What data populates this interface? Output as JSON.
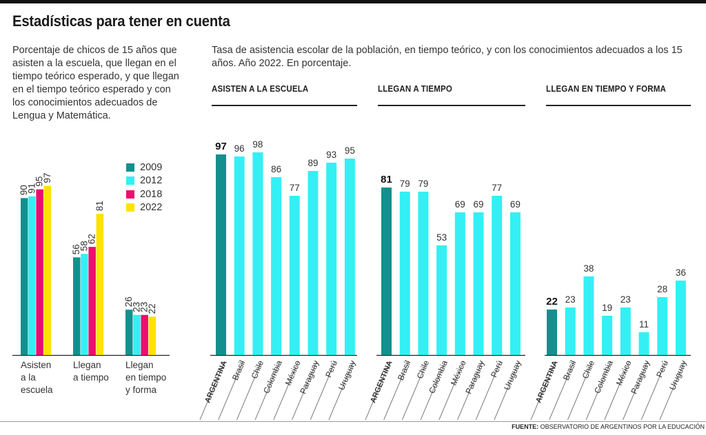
{
  "title": "Estadísticas para tener en cuenta",
  "left_description": "Porcentaje de chicos de 15 años que asisten a la escuela, que llegan en el tiempo teórico esperado, y que llegan en el tiempo teórico esperado y con los conocimientos adecuados de Lengua y Matemática.",
  "right_description": "Tasa de asistencia escolar de la población, en tiempo teórico, y con los conocimientos adecuados a los 15 años. Año 2022. En porcentaje.",
  "colors": {
    "y2009": "#13908e",
    "y2012": "#33f0f5",
    "y2018": "#ec0e6f",
    "y2022": "#ffe200",
    "argentina": "#13908e",
    "country": "#33f0f5"
  },
  "footer": {
    "label": "FUENTE:",
    "source": "OBSERVATORIO DE ARGENTINOS POR LA EDUCACIÓN"
  },
  "chart_data": [
    {
      "type": "bar",
      "categories": [
        "Asisten a la escuela",
        "Llegan a tiempo",
        "Llegan en tiempo y forma"
      ],
      "category_lines": [
        [
          "Asisten",
          "a la",
          "escuela"
        ],
        [
          "Llegan",
          "a tiempo"
        ],
        [
          "Llegan",
          "en tiempo",
          "y forma"
        ]
      ],
      "series": [
        {
          "name": "2009",
          "values": [
            90,
            56,
            26
          ]
        },
        {
          "name": "2012",
          "values": [
            91,
            58,
            23
          ]
        },
        {
          "name": "2018",
          "values": [
            95,
            62,
            23
          ]
        },
        {
          "name": "2022",
          "values": [
            97,
            81,
            22
          ]
        }
      ],
      "ylim": [
        0,
        100
      ]
    },
    {
      "type": "bar",
      "title": "ASISTEN A LA ESCUELA",
      "categories": [
        "ARGENTINA",
        "Brasil",
        "Chile",
        "Colombia",
        "México",
        "Paraguay",
        "Perú",
        "Uruguay"
      ],
      "values": [
        97,
        96,
        98,
        86,
        77,
        89,
        93,
        95
      ],
      "ylim": [
        0,
        100
      ]
    },
    {
      "type": "bar",
      "title": "LLEGAN A TIEMPO",
      "categories": [
        "ARGENTINA",
        "Brasil",
        "Chile",
        "Colombia",
        "México",
        "Paraguay",
        "Perú",
        "Uruguay"
      ],
      "values": [
        81,
        79,
        79,
        53,
        69,
        69,
        77,
        69
      ],
      "ylim": [
        0,
        100
      ]
    },
    {
      "type": "bar",
      "title": "LLEGAN EN TIEMPO Y FORMA",
      "categories": [
        "ARGENTINA",
        "Brasil",
        "Chile",
        "Colombia",
        "México",
        "Paraguay",
        "Perú",
        "Uruguay"
      ],
      "values": [
        22,
        23,
        38,
        19,
        23,
        11,
        28,
        36
      ],
      "ylim": [
        0,
        100
      ]
    }
  ]
}
